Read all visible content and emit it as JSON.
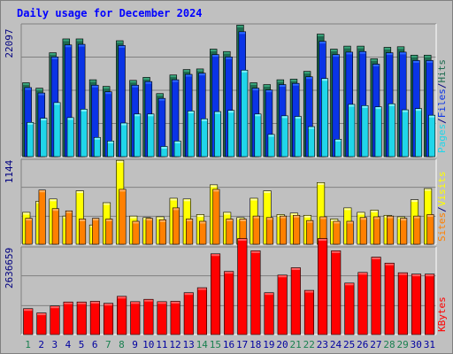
{
  "title": "Daily usage for December 2024",
  "colors": {
    "background": "#c0c0c0",
    "hits": "#1e6b50",
    "hits_top": "#39a47a",
    "files": "#0a34e6",
    "files_top": "#2d6bff",
    "pages": "#20d6ea",
    "pages_top": "#7ef2ff",
    "visits": "#ffff00",
    "visits_top": "#ffffa0",
    "sites": "#ff8000",
    "sites_top": "#ffb060",
    "kbytes": "#ff0000",
    "kbytes_top": "#ff6060",
    "weekday_label": "#0000a0",
    "weekend_label": "#1a8050",
    "title": "#0000ff"
  },
  "chart_data": [
    {
      "type": "bar",
      "panel": "hits-files-pages",
      "ymax": 22097,
      "ymax_label": "22097",
      "legend": [
        "Pages",
        "/",
        "Files",
        "/",
        "Hits"
      ],
      "categories": [
        "1",
        "2",
        "3",
        "4",
        "5",
        "6",
        "7",
        "8",
        "9",
        "10",
        "11",
        "12",
        "13",
        "14",
        "15",
        "16",
        "17",
        "18",
        "19",
        "20",
        "21",
        "22",
        "23",
        "24",
        "25",
        "26",
        "27",
        "28",
        "29",
        "30",
        "31"
      ],
      "series": [
        {
          "name": "Hits",
          "values": [
            12300,
            11400,
            17300,
            19600,
            19600,
            12800,
            11700,
            19300,
            12700,
            13200,
            10500,
            13600,
            14500,
            14600,
            17900,
            17500,
            21900,
            12300,
            12000,
            12800,
            12900,
            14200,
            20400,
            17900,
            18400,
            18400,
            16300,
            18200,
            18300,
            16900,
            16900
          ]
        },
        {
          "name": "Files",
          "values": [
            11500,
            10600,
            16600,
            18600,
            18700,
            11900,
            10800,
            18500,
            11900,
            12500,
            9700,
            12800,
            13700,
            13900,
            17000,
            16600,
            20800,
            11400,
            11100,
            12000,
            12200,
            13300,
            19200,
            17000,
            17400,
            17500,
            15400,
            17300,
            17400,
            16000,
            16000
          ]
        },
        {
          "name": "Pages",
          "values": [
            5700,
            6400,
            9000,
            6500,
            7900,
            3200,
            2600,
            5600,
            7100,
            7100,
            1700,
            2600,
            7600,
            6300,
            7500,
            7700,
            14400,
            7100,
            3700,
            6800,
            6700,
            5000,
            13000,
            2900,
            8700,
            8500,
            8300,
            8800,
            7800,
            8000,
            6900
          ]
        }
      ]
    },
    {
      "type": "bar",
      "panel": "visits-sites",
      "ymax": 1144,
      "ymax_label": "1144",
      "legend": [
        "Sites",
        "/",
        "Visits"
      ],
      "categories": [
        "1",
        "2",
        "3",
        "4",
        "5",
        "6",
        "7",
        "8",
        "9",
        "10",
        "11",
        "12",
        "13",
        "14",
        "15",
        "16",
        "17",
        "18",
        "19",
        "20",
        "21",
        "22",
        "23",
        "24",
        "25",
        "26",
        "27",
        "28",
        "29",
        "30",
        "31"
      ],
      "series": [
        {
          "name": "Visits",
          "values": [
            430,
            580,
            610,
            380,
            720,
            260,
            560,
            1130,
            380,
            360,
            370,
            620,
            610,
            400,
            800,
            430,
            360,
            620,
            720,
            400,
            420,
            390,
            830,
            340,
            490,
            430,
            460,
            390,
            370,
            600,
            750
          ]
        },
        {
          "name": "Sites",
          "values": [
            350,
            730,
            480,
            450,
            340,
            350,
            340,
            740,
            310,
            350,
            330,
            490,
            340,
            310,
            740,
            340,
            340,
            380,
            360,
            380,
            390,
            320,
            370,
            310,
            310,
            360,
            370,
            380,
            350,
            380,
            400
          ]
        }
      ]
    },
    {
      "type": "bar",
      "panel": "kbytes",
      "ymax": 2636659,
      "ymax_label": "2636659",
      "legend": [
        "KBytes"
      ],
      "categories": [
        "1",
        "2",
        "3",
        "4",
        "5",
        "6",
        "7",
        "8",
        "9",
        "10",
        "11",
        "12",
        "13",
        "14",
        "15",
        "16",
        "17",
        "18",
        "19",
        "20",
        "21",
        "22",
        "23",
        "24",
        "25",
        "26",
        "27",
        "28",
        "29",
        "30",
        "31"
      ],
      "series": [
        {
          "name": "KBytes",
          "values": [
            780,
            650,
            860,
            980,
            980,
            1000,
            940,
            1150,
            990,
            1060,
            990,
            1000,
            1260,
            1410,
            2430,
            1900,
            2890,
            2520,
            1260,
            1790,
            2010,
            1330,
            2890,
            2520,
            1550,
            1870,
            2330,
            2150,
            1860,
            1820,
            1820
          ]
        }
      ]
    }
  ],
  "weekend_days": [
    "1",
    "7",
    "8",
    "14",
    "15",
    "21",
    "22",
    "28",
    "29"
  ]
}
